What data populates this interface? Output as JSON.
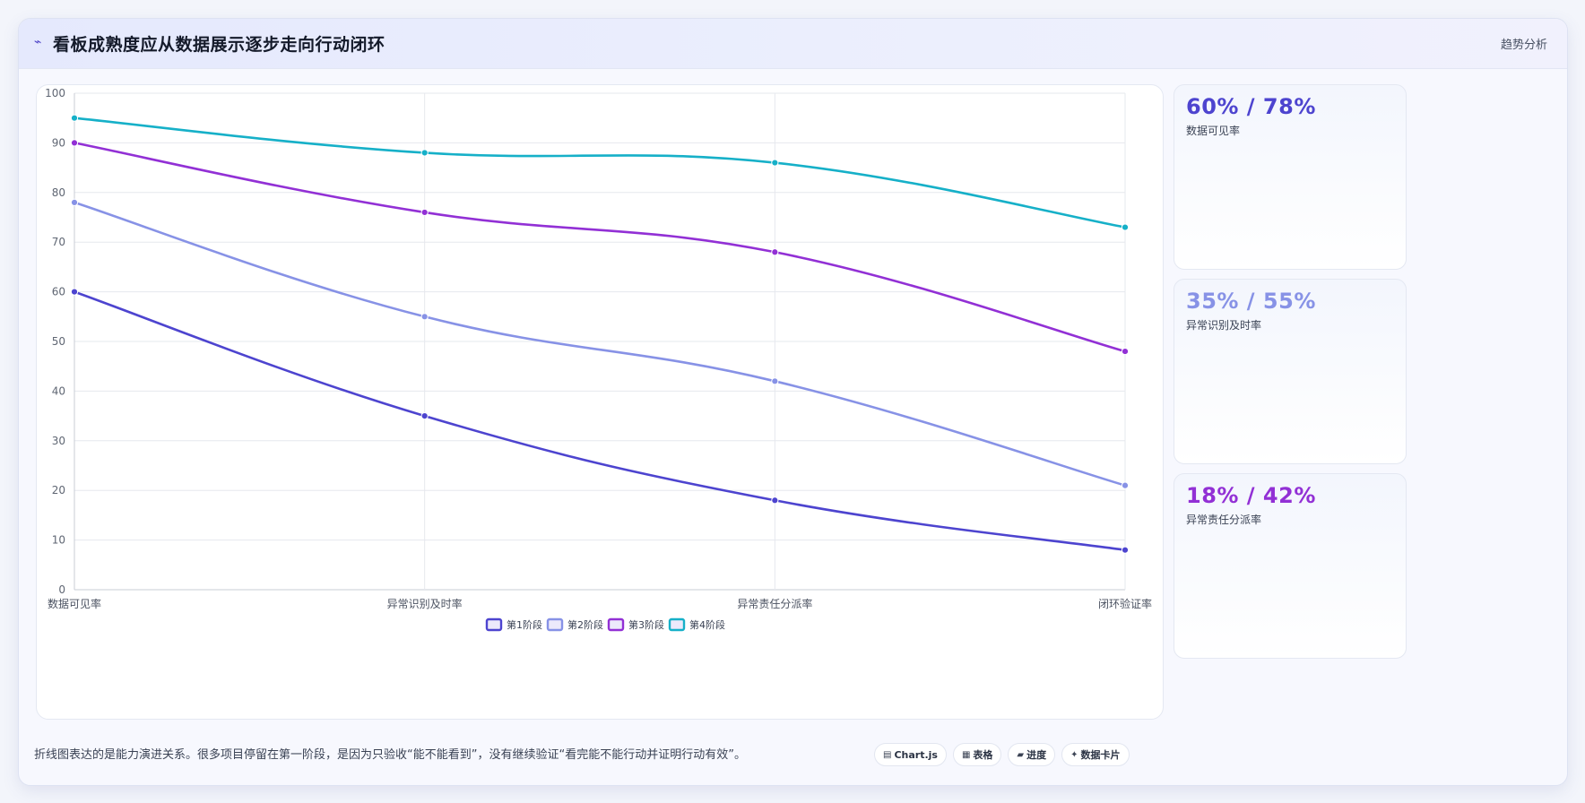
{
  "header": {
    "title": "看板成熟度应从数据展示逐步走向行动闭环",
    "action_label": "趋势分析"
  },
  "chart_data": {
    "type": "line",
    "categories": [
      "数据可见率",
      "异常识别及时率",
      "异常责任分派率",
      "闭环验证率"
    ],
    "ylim": [
      0,
      100
    ],
    "yticks": [
      0,
      10,
      20,
      30,
      40,
      50,
      60,
      70,
      80,
      90,
      100
    ],
    "grid": true,
    "legend_position": "bottom",
    "series": [
      {
        "name": "第1阶段",
        "values": [
          60,
          35,
          18,
          8
        ],
        "color": "#4d44cf"
      },
      {
        "name": "第2阶段",
        "values": [
          78,
          55,
          42,
          21
        ],
        "color": "#8792e6"
      },
      {
        "name": "第3阶段",
        "values": [
          90,
          76,
          68,
          48
        ],
        "color": "#9230d5"
      },
      {
        "name": "第4阶段",
        "values": [
          95,
          88,
          86,
          73
        ],
        "color": "#16b0c8"
      }
    ]
  },
  "stats": [
    {
      "value": "60% / 78%",
      "label": "数据可见率",
      "color": "#4d44cf"
    },
    {
      "value": "35% / 55%",
      "label": "异常识别及时率",
      "color": "#8792e6"
    },
    {
      "value": "18% / 42%",
      "label": "异常责任分派率",
      "color": "#9230d5"
    }
  ],
  "footer": {
    "note": "折线图表达的是能力演进关系。很多项目停留在第一阶段，是因为只验收“能不能看到”，没有继续验证“看完能不能行动并证明行动有效”。",
    "chips": [
      {
        "glyph": "▤",
        "label": "Chart.js"
      },
      {
        "glyph": "▦",
        "label": "表格"
      },
      {
        "glyph": "▰",
        "label": "进度"
      },
      {
        "glyph": "✦",
        "label": "数据卡片"
      }
    ]
  }
}
